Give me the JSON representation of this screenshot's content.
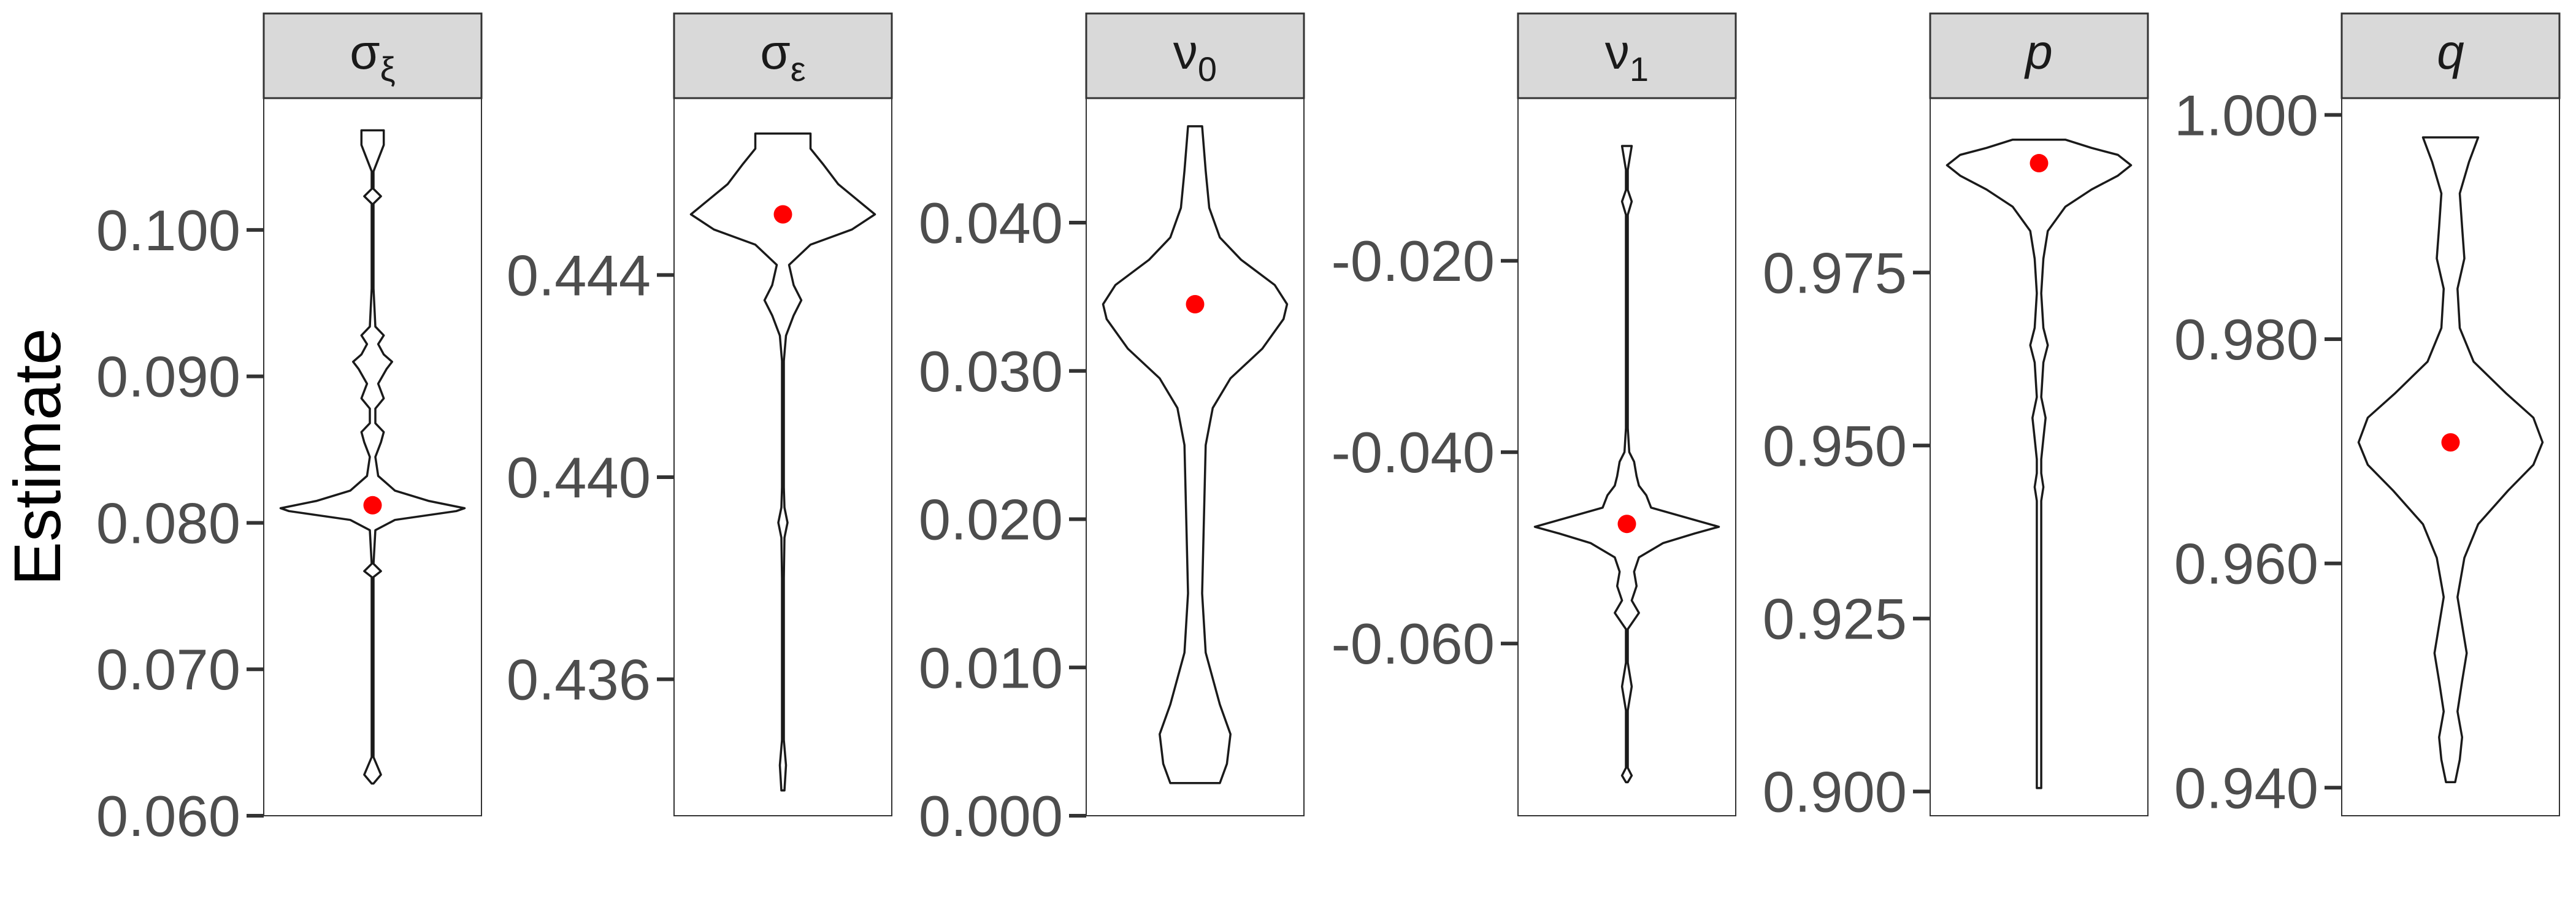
{
  "chart_data": {
    "type": "violin",
    "y_axis_title": "Estimate",
    "panels": [
      {
        "label": "σ",
        "label_sub": "ξ",
        "italic": false,
        "ylim": [
          0.06,
          0.109
        ],
        "ticks": [
          0.06,
          0.07,
          0.08,
          0.09,
          0.1
        ],
        "tick_labels": [
          "0.060",
          "0.070",
          "0.080",
          "0.090",
          "0.100"
        ],
        "point": 0.0812,
        "violin": [
          [
            0.0622,
            0
          ],
          [
            0.0628,
            3
          ],
          [
            0.064,
            0
          ],
          [
            0.07,
            0
          ],
          [
            0.0763,
            0
          ],
          [
            0.0767,
            3
          ],
          [
            0.0772,
            0
          ],
          [
            0.0795,
            1
          ],
          [
            0.0802,
            8
          ],
          [
            0.0808,
            30
          ],
          [
            0.081,
            33
          ],
          [
            0.0815,
            20
          ],
          [
            0.0822,
            8
          ],
          [
            0.0832,
            2
          ],
          [
            0.0845,
            1
          ],
          [
            0.0855,
            3
          ],
          [
            0.0862,
            4
          ],
          [
            0.0868,
            1
          ],
          [
            0.0878,
            1
          ],
          [
            0.0885,
            4
          ],
          [
            0.0895,
            2
          ],
          [
            0.0905,
            5
          ],
          [
            0.091,
            7
          ],
          [
            0.0915,
            4
          ],
          [
            0.0922,
            2
          ],
          [
            0.0928,
            4
          ],
          [
            0.0934,
            1
          ],
          [
            0.096,
            0
          ],
          [
            0.1018,
            0
          ],
          [
            0.1023,
            3
          ],
          [
            0.1028,
            0
          ],
          [
            0.104,
            0
          ],
          [
            0.1058,
            4
          ],
          [
            0.1068,
            4
          ]
        ]
      },
      {
        "label": "σ",
        "label_sub": "ε",
        "italic": false,
        "ylim": [
          0.4333,
          0.4475
        ],
        "ticks": [
          0.436,
          0.44,
          0.444
        ],
        "tick_labels": [
          "0.436",
          "0.440",
          "0.444"
        ],
        "point": 0.4452,
        "violin": [
          [
            0.4338,
            1
          ],
          [
            0.4343,
            2
          ],
          [
            0.4348,
            0
          ],
          [
            0.438,
            0
          ],
          [
            0.4388,
            1
          ],
          [
            0.4391,
            3
          ],
          [
            0.4394,
            1
          ],
          [
            0.4398,
            0
          ],
          [
            0.4423,
            0
          ],
          [
            0.4428,
            2
          ],
          [
            0.4432,
            7
          ],
          [
            0.4435,
            12
          ],
          [
            0.4438,
            7
          ],
          [
            0.4442,
            4
          ],
          [
            0.4446,
            18
          ],
          [
            0.4449,
            45
          ],
          [
            0.4452,
            60
          ],
          [
            0.4455,
            48
          ],
          [
            0.4458,
            36
          ],
          [
            0.4462,
            26
          ],
          [
            0.4465,
            18
          ],
          [
            0.4468,
            18
          ]
        ]
      },
      {
        "label": "ν",
        "label_sub": "0",
        "italic": false,
        "ylim": [
          0.0,
          0.0484
        ],
        "ticks": [
          0.0,
          0.01,
          0.02,
          0.03,
          0.04
        ],
        "tick_labels": [
          "0.000",
          "0.010",
          "0.020",
          "0.030",
          "0.040"
        ],
        "point": 0.0345,
        "violin": [
          [
            0.0022,
            14
          ],
          [
            0.0035,
            18
          ],
          [
            0.0055,
            20
          ],
          [
            0.0075,
            14
          ],
          [
            0.011,
            6
          ],
          [
            0.015,
            4
          ],
          [
            0.02,
            5
          ],
          [
            0.025,
            6
          ],
          [
            0.0275,
            10
          ],
          [
            0.0295,
            20
          ],
          [
            0.0315,
            38
          ],
          [
            0.0335,
            50
          ],
          [
            0.0345,
            52
          ],
          [
            0.0358,
            45
          ],
          [
            0.0375,
            26
          ],
          [
            0.039,
            14
          ],
          [
            0.041,
            8
          ],
          [
            0.0435,
            6
          ],
          [
            0.0465,
            4
          ]
        ]
      },
      {
        "label": "ν",
        "label_sub": "1",
        "italic": false,
        "ylim": [
          -0.078,
          -0.003
        ],
        "ticks": [
          -0.06,
          -0.04,
          -0.02
        ],
        "tick_labels": [
          "-0.060",
          "-0.040",
          "-0.020"
        ],
        "point": -0.0475,
        "violin": [
          [
            -0.0745,
            0
          ],
          [
            -0.0738,
            2
          ],
          [
            -0.073,
            0
          ],
          [
            -0.067,
            0
          ],
          [
            -0.0645,
            2
          ],
          [
            -0.062,
            0
          ],
          [
            -0.0585,
            0
          ],
          [
            -0.0568,
            5
          ],
          [
            -0.0555,
            2
          ],
          [
            -0.054,
            4
          ],
          [
            -0.0525,
            3
          ],
          [
            -0.051,
            5
          ],
          [
            -0.0495,
            15
          ],
          [
            -0.0485,
            28
          ],
          [
            -0.0478,
            38
          ],
          [
            -0.0468,
            24
          ],
          [
            -0.0458,
            10
          ],
          [
            -0.0445,
            8
          ],
          [
            -0.0435,
            5
          ],
          [
            -0.0425,
            4
          ],
          [
            -0.041,
            3
          ],
          [
            -0.04,
            1
          ],
          [
            -0.0375,
            0
          ],
          [
            -0.031,
            0
          ],
          [
            -0.0235,
            0
          ],
          [
            -0.0152,
            0
          ],
          [
            -0.0138,
            2
          ],
          [
            -0.0126,
            0
          ],
          [
            -0.0105,
            0
          ],
          [
            -0.008,
            2
          ]
        ]
      },
      {
        "label": "p",
        "label_sub": "",
        "italic": true,
        "ylim": [
          0.8965,
          1.0002
        ],
        "ticks": [
          0.9,
          0.925,
          0.95,
          0.975
        ],
        "tick_labels": [
          "0.900",
          "0.925",
          "0.950",
          "0.975"
        ],
        "point": 0.9908,
        "violin": [
          [
            0.9005,
            1
          ],
          [
            0.902,
            1
          ],
          [
            0.92,
            1
          ],
          [
            0.942,
            1
          ],
          [
            0.944,
            2
          ],
          [
            0.946,
            1
          ],
          [
            0.948,
            1
          ],
          [
            0.951,
            2
          ],
          [
            0.954,
            3
          ],
          [
            0.957,
            1
          ],
          [
            0.962,
            2
          ],
          [
            0.9645,
            4
          ],
          [
            0.967,
            2
          ],
          [
            0.972,
            1
          ],
          [
            0.977,
            2
          ],
          [
            0.981,
            4
          ],
          [
            0.9845,
            12
          ],
          [
            0.987,
            24
          ],
          [
            0.989,
            36
          ],
          [
            0.9905,
            42
          ],
          [
            0.992,
            36
          ],
          [
            0.993,
            24
          ],
          [
            0.9942,
            12
          ]
        ]
      },
      {
        "label": "q",
        "label_sub": "",
        "italic": true,
        "ylim": [
          0.9375,
          1.0015
        ],
        "ticks": [
          0.94,
          0.96,
          0.98,
          1.0
        ],
        "tick_labels": [
          "0.940",
          "0.960",
          "0.980",
          "1.000"
        ],
        "point": 0.9708,
        "violin": [
          [
            0.9405,
            2
          ],
          [
            0.9425,
            4
          ],
          [
            0.9445,
            5
          ],
          [
            0.9468,
            3
          ],
          [
            0.9495,
            5
          ],
          [
            0.952,
            7
          ],
          [
            0.9545,
            5
          ],
          [
            0.957,
            3
          ],
          [
            0.9605,
            6
          ],
          [
            0.9635,
            12
          ],
          [
            0.9665,
            25
          ],
          [
            0.9688,
            36
          ],
          [
            0.9708,
            40
          ],
          [
            0.973,
            36
          ],
          [
            0.9752,
            24
          ],
          [
            0.978,
            10
          ],
          [
            0.981,
            4
          ],
          [
            0.9845,
            3
          ],
          [
            0.9872,
            6
          ],
          [
            0.99,
            5
          ],
          [
            0.993,
            4
          ],
          [
            0.9958,
            8
          ],
          [
            0.998,
            12
          ]
        ]
      }
    ]
  }
}
